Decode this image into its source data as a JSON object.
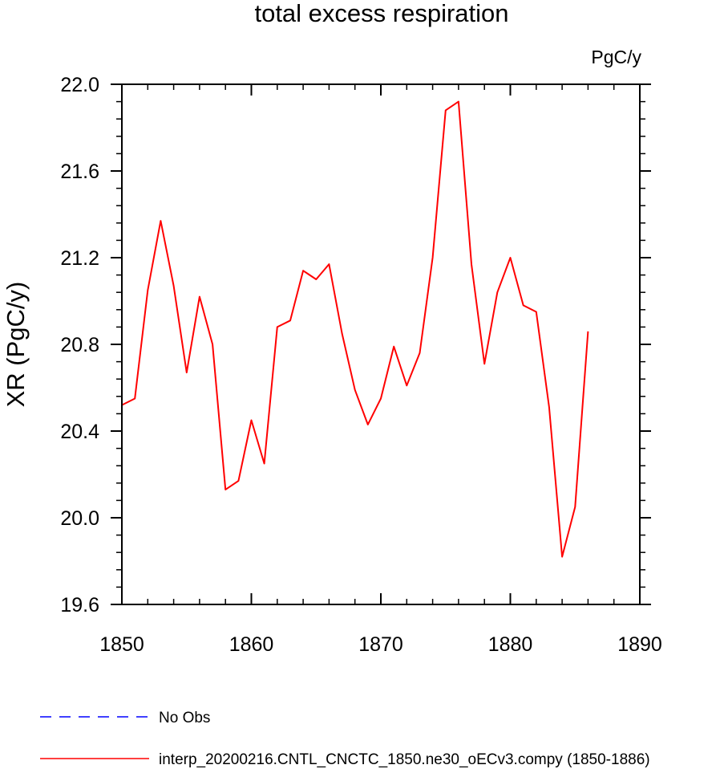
{
  "chart_data": {
    "type": "line",
    "title": "total excess respiration",
    "units": "PgC/y",
    "ylabel": "XR  (PgC/y)",
    "xlabel": "",
    "xlim": [
      1850,
      1890
    ],
    "ylim": [
      19.6,
      22.0
    ],
    "x_ticks": [
      "1850",
      "1860",
      "1870",
      "1880",
      "1890"
    ],
    "y_ticks": [
      "19.6",
      "20.0",
      "20.4",
      "20.8",
      "21.2",
      "21.6",
      "22.0"
    ],
    "grid": false,
    "legend_position": "bottom",
    "series": [
      {
        "name": "interp_20200216.CNTL_CNCTC_1850.ne30_oECv3.compy (1850-1886)",
        "color": "#ff0000",
        "style": "solid",
        "x": [
          1850,
          1851,
          1852,
          1853,
          1854,
          1855,
          1856,
          1857,
          1858,
          1859,
          1860,
          1861,
          1862,
          1863,
          1864,
          1865,
          1866,
          1867,
          1868,
          1869,
          1870,
          1871,
          1872,
          1873,
          1874,
          1875,
          1876,
          1877,
          1878,
          1879,
          1880,
          1881,
          1882,
          1883,
          1884,
          1885,
          1886
        ],
        "values": [
          20.52,
          20.55,
          21.05,
          21.37,
          21.07,
          20.67,
          21.02,
          20.8,
          20.13,
          20.17,
          20.45,
          20.25,
          20.88,
          20.91,
          21.14,
          21.1,
          21.17,
          20.85,
          20.59,
          20.43,
          20.55,
          20.79,
          20.61,
          20.76,
          21.2,
          21.88,
          21.92,
          21.17,
          20.71,
          21.04,
          21.2,
          20.98,
          20.95,
          20.51,
          19.82,
          20.05,
          20.86
        ]
      },
      {
        "name": "No Obs",
        "color": "#0000ff",
        "style": "dashed",
        "x": [],
        "values": []
      }
    ]
  },
  "legend": [
    {
      "label": "No Obs",
      "color": "#0000ff",
      "style": "dashed"
    },
    {
      "label": "interp_20200216.CNTL_CNCTC_1850.ne30_oECv3.compy (1850-1886)",
      "color": "#ff0000",
      "style": "solid"
    }
  ]
}
